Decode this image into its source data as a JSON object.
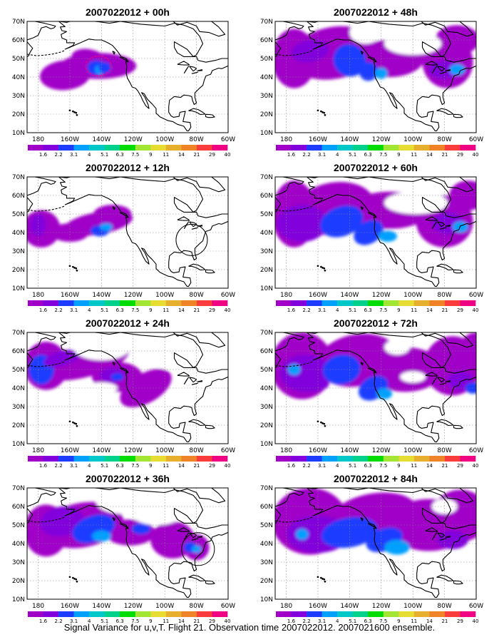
{
  "panels": [
    {
      "title": "2007022012 + 00h",
      "lead": "00h"
    },
    {
      "title": "2007022012 + 12h",
      "lead": "12h"
    },
    {
      "title": "2007022012 + 24h",
      "lead": "24h"
    },
    {
      "title": "2007022012 + 36h",
      "lead": "36h"
    },
    {
      "title": "2007022012 + 48h",
      "lead": "48h"
    },
    {
      "title": "2007022012 + 60h",
      "lead": "60h"
    },
    {
      "title": "2007022012 + 72h",
      "lead": "72h"
    },
    {
      "title": "2007022012 + 84h",
      "lead": "84h"
    }
  ],
  "lat_labels": [
    "70N",
    "60N",
    "50N",
    "40N",
    "30N",
    "20N",
    "10N"
  ],
  "lon_labels": [
    "180",
    "160W",
    "140W",
    "120W",
    "100W",
    "80W",
    "60W"
  ],
  "colorbar": {
    "labels": [
      "1.6",
      "2.2",
      "3.1",
      "4",
      "5.1",
      "6.3",
      "7.5",
      "9",
      "11",
      "14",
      "21",
      "29",
      "40"
    ],
    "colors": [
      "#a000c8",
      "#8200dc",
      "#1e3cff",
      "#00a0ff",
      "#00c8c8",
      "#00d28c",
      "#00dc00",
      "#a0e632",
      "#e6dc32",
      "#e6af2d",
      "#f08228",
      "#fa3c3c",
      "#f00082"
    ]
  },
  "caption": "Signal Variance for u,v,T. Flight 21. Observation time 2007022012. 2007021600 ensemble."
}
